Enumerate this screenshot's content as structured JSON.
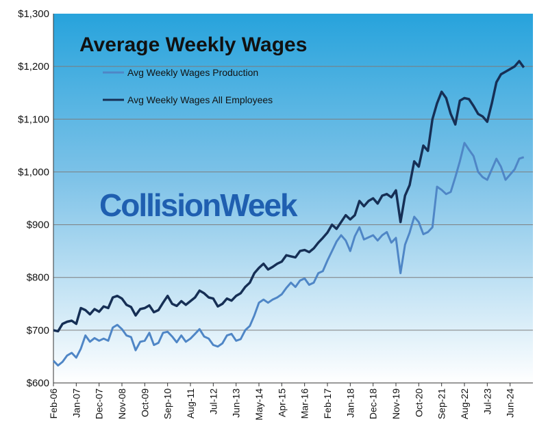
{
  "chart_data": {
    "type": "line",
    "title": "Average Weekly Wages",
    "watermark": "CollisionWeek",
    "ylim": [
      600,
      1300
    ],
    "y_ticks": [
      {
        "value": 600,
        "label": "$600"
      },
      {
        "value": 700,
        "label": "$700"
      },
      {
        "value": 800,
        "label": "$800"
      },
      {
        "value": 900,
        "label": "$900"
      },
      {
        "value": 1000,
        "label": "$1,000"
      },
      {
        "value": 1100,
        "label": "$1,100"
      },
      {
        "value": 1200,
        "label": "$1,200"
      },
      {
        "value": 1300,
        "label": "$1,300"
      }
    ],
    "x_ticks": [
      "Feb-06",
      "Jan-07",
      "Dec-07",
      "Nov-08",
      "Oct-09",
      "Sep-10",
      "Aug-11",
      "Jul-12",
      "Jun-13",
      "May-14",
      "Apr-15",
      "Mar-16",
      "Feb-17",
      "Jan-18",
      "Dec-18",
      "Nov-19",
      "Oct-20",
      "Sep-21",
      "Aug-22",
      "Jul-23",
      "Jun-24"
    ],
    "grid": true,
    "legend_placement": "top-left",
    "series": [
      {
        "name": "Avg Weekly Wages Production",
        "color": "#4f86c6",
        "points": [
          [
            0,
            642
          ],
          [
            2,
            633
          ],
          [
            4,
            640
          ],
          [
            6,
            652
          ],
          [
            8,
            657
          ],
          [
            10,
            648
          ],
          [
            12,
            665
          ],
          [
            14,
            690
          ],
          [
            16,
            678
          ],
          [
            18,
            685
          ],
          [
            20,
            680
          ],
          [
            22,
            684
          ],
          [
            24,
            680
          ],
          [
            26,
            705
          ],
          [
            28,
            710
          ],
          [
            30,
            702
          ],
          [
            32,
            690
          ],
          [
            34,
            687
          ],
          [
            36,
            662
          ],
          [
            38,
            678
          ],
          [
            40,
            680
          ],
          [
            42,
            695
          ],
          [
            44,
            672
          ],
          [
            46,
            676
          ],
          [
            48,
            695
          ],
          [
            50,
            697
          ],
          [
            52,
            688
          ],
          [
            54,
            677
          ],
          [
            56,
            690
          ],
          [
            58,
            678
          ],
          [
            60,
            684
          ],
          [
            62,
            693
          ],
          [
            64,
            702
          ],
          [
            66,
            688
          ],
          [
            68,
            684
          ],
          [
            70,
            672
          ],
          [
            72,
            669
          ],
          [
            74,
            675
          ],
          [
            76,
            690
          ],
          [
            78,
            693
          ],
          [
            80,
            680
          ],
          [
            82,
            683
          ],
          [
            84,
            700
          ],
          [
            86,
            708
          ],
          [
            88,
            728
          ],
          [
            90,
            752
          ],
          [
            92,
            758
          ],
          [
            94,
            752
          ],
          [
            96,
            758
          ],
          [
            98,
            762
          ],
          [
            100,
            768
          ],
          [
            102,
            780
          ],
          [
            104,
            790
          ],
          [
            106,
            782
          ],
          [
            108,
            794
          ],
          [
            110,
            798
          ],
          [
            112,
            786
          ],
          [
            114,
            790
          ],
          [
            116,
            808
          ],
          [
            118,
            812
          ],
          [
            120,
            832
          ],
          [
            122,
            850
          ],
          [
            124,
            868
          ],
          [
            126,
            880
          ],
          [
            128,
            870
          ],
          [
            130,
            850
          ],
          [
            132,
            878
          ],
          [
            134,
            895
          ],
          [
            136,
            872
          ],
          [
            138,
            876
          ],
          [
            140,
            880
          ],
          [
            142,
            870
          ],
          [
            144,
            880
          ],
          [
            146,
            886
          ],
          [
            148,
            866
          ],
          [
            150,
            875
          ],
          [
            152,
            808
          ],
          [
            154,
            862
          ],
          [
            156,
            885
          ],
          [
            158,
            915
          ],
          [
            160,
            905
          ],
          [
            162,
            882
          ],
          [
            164,
            886
          ],
          [
            166,
            895
          ],
          [
            168,
            972
          ],
          [
            170,
            966
          ],
          [
            172,
            958
          ],
          [
            174,
            962
          ],
          [
            176,
            990
          ],
          [
            178,
            1020
          ],
          [
            180,
            1055
          ],
          [
            182,
            1042
          ],
          [
            184,
            1030
          ],
          [
            186,
            1000
          ],
          [
            188,
            990
          ],
          [
            190,
            985
          ],
          [
            192,
            1005
          ],
          [
            194,
            1025
          ],
          [
            196,
            1010
          ],
          [
            198,
            985
          ],
          [
            200,
            995
          ],
          [
            202,
            1005
          ],
          [
            204,
            1025
          ],
          [
            206,
            1028
          ]
        ]
      },
      {
        "name": "Avg Weekly Wages All Employees",
        "color": "#162f55",
        "points": [
          [
            0,
            700
          ],
          [
            2,
            698
          ],
          [
            4,
            712
          ],
          [
            6,
            716
          ],
          [
            8,
            718
          ],
          [
            10,
            712
          ],
          [
            12,
            742
          ],
          [
            14,
            738
          ],
          [
            16,
            730
          ],
          [
            18,
            740
          ],
          [
            20,
            735
          ],
          [
            22,
            745
          ],
          [
            24,
            742
          ],
          [
            26,
            762
          ],
          [
            28,
            765
          ],
          [
            30,
            760
          ],
          [
            32,
            748
          ],
          [
            34,
            744
          ],
          [
            36,
            728
          ],
          [
            38,
            740
          ],
          [
            40,
            742
          ],
          [
            42,
            747
          ],
          [
            44,
            734
          ],
          [
            46,
            738
          ],
          [
            48,
            752
          ],
          [
            50,
            765
          ],
          [
            52,
            750
          ],
          [
            54,
            746
          ],
          [
            56,
            755
          ],
          [
            58,
            748
          ],
          [
            60,
            755
          ],
          [
            62,
            762
          ],
          [
            64,
            775
          ],
          [
            66,
            770
          ],
          [
            68,
            762
          ],
          [
            70,
            760
          ],
          [
            72,
            745
          ],
          [
            74,
            750
          ],
          [
            76,
            760
          ],
          [
            78,
            756
          ],
          [
            80,
            765
          ],
          [
            82,
            770
          ],
          [
            84,
            782
          ],
          [
            86,
            790
          ],
          [
            88,
            808
          ],
          [
            90,
            818
          ],
          [
            92,
            826
          ],
          [
            94,
            815
          ],
          [
            96,
            820
          ],
          [
            98,
            826
          ],
          [
            100,
            830
          ],
          [
            102,
            842
          ],
          [
            104,
            840
          ],
          [
            106,
            838
          ],
          [
            108,
            850
          ],
          [
            110,
            852
          ],
          [
            112,
            848
          ],
          [
            114,
            855
          ],
          [
            116,
            866
          ],
          [
            118,
            875
          ],
          [
            120,
            885
          ],
          [
            122,
            900
          ],
          [
            124,
            892
          ],
          [
            126,
            905
          ],
          [
            128,
            918
          ],
          [
            130,
            910
          ],
          [
            132,
            918
          ],
          [
            134,
            945
          ],
          [
            136,
            935
          ],
          [
            138,
            945
          ],
          [
            140,
            950
          ],
          [
            142,
            940
          ],
          [
            144,
            955
          ],
          [
            146,
            958
          ],
          [
            148,
            952
          ],
          [
            150,
            965
          ],
          [
            152,
            905
          ],
          [
            154,
            955
          ],
          [
            156,
            975
          ],
          [
            158,
            1020
          ],
          [
            160,
            1010
          ],
          [
            162,
            1050
          ],
          [
            164,
            1040
          ],
          [
            166,
            1100
          ],
          [
            168,
            1130
          ],
          [
            170,
            1152
          ],
          [
            172,
            1140
          ],
          [
            174,
            1110
          ],
          [
            176,
            1090
          ],
          [
            178,
            1135
          ],
          [
            180,
            1140
          ],
          [
            182,
            1138
          ],
          [
            184,
            1125
          ],
          [
            186,
            1110
          ],
          [
            188,
            1105
          ],
          [
            190,
            1095
          ],
          [
            192,
            1130
          ],
          [
            194,
            1170
          ],
          [
            196,
            1185
          ],
          [
            198,
            1190
          ],
          [
            200,
            1195
          ],
          [
            202,
            1200
          ],
          [
            204,
            1210
          ],
          [
            206,
            1198
          ]
        ]
      }
    ]
  }
}
